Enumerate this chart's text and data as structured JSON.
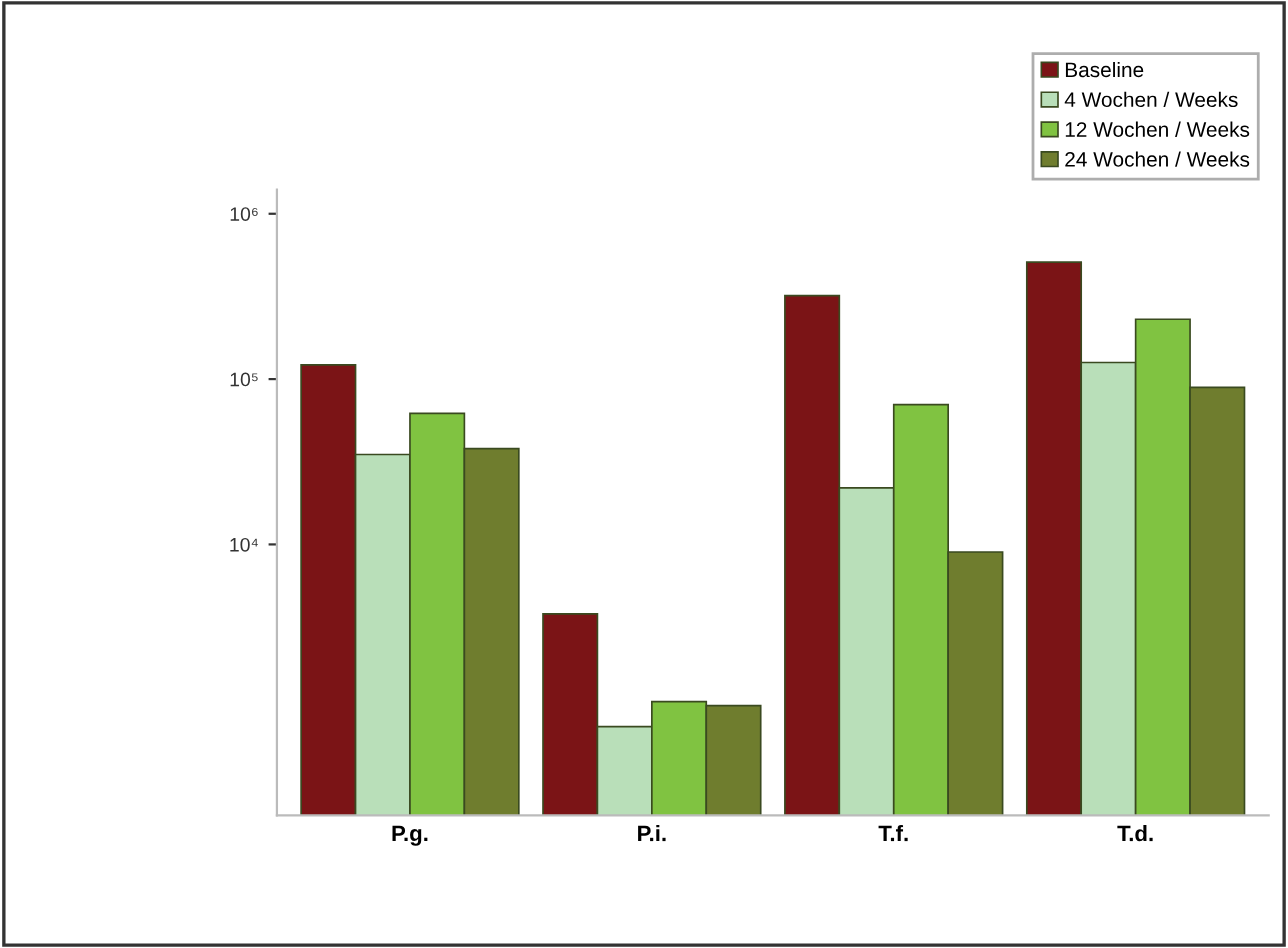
{
  "chart_data": {
    "type": "bar",
    "categories": [
      "P.g.",
      "P.i.",
      "T.f.",
      "T.d."
    ],
    "series": [
      {
        "name": "Baseline",
        "color": "#7b1416",
        "values": [
          122000,
          3800,
          320000,
          510000
        ]
      },
      {
        "name": "4 Wochen / Weeks",
        "color": "#b9dfb9",
        "values": [
          35000,
          790,
          22000,
          126000
        ]
      },
      {
        "name": "12 Wochen / Weeks",
        "color": "#80c341",
        "values": [
          62000,
          1120,
          70000,
          230000
        ]
      },
      {
        "name": "24 Wochen / Weeks",
        "color": "#6f7d2e",
        "values": [
          38000,
          1060,
          9000,
          89000
        ]
      }
    ],
    "log": true,
    "ylim": [
      230,
      1400000
    ],
    "yticks": [
      {
        "value": 10000,
        "label": "10⁴"
      },
      {
        "value": 100000,
        "label": "10⁵"
      },
      {
        "value": 1000000,
        "label": "10⁶"
      }
    ],
    "grid": false,
    "legend": "top right"
  }
}
